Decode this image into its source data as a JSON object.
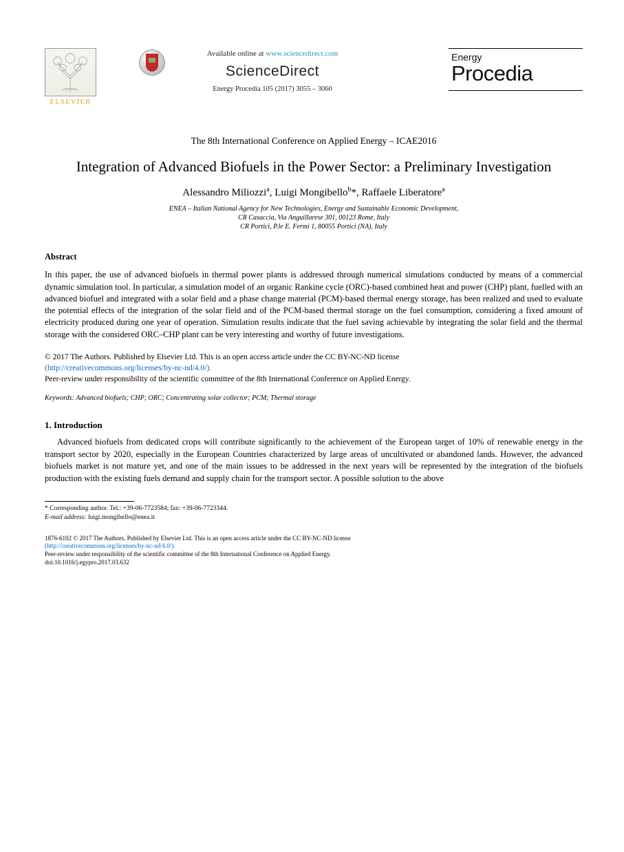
{
  "header": {
    "elsevier_label": "ELSEVIER",
    "available_at": "Available online at",
    "url": "www.sciencedirect.com",
    "sciencedirect": "ScienceDirect",
    "journal_line": "Energy Procedia 105 (2017) 3055 – 3060",
    "journal_energy": "Energy",
    "journal_procedia": "Procedia",
    "colors": {
      "url_color": "#1a9bb8",
      "elsevier_orange": "#e8a33d",
      "crossmark_red": "#c1272d"
    }
  },
  "conference": "The 8th International Conference on Applied Energy – ICAE2016",
  "title": "Integration of Advanced Biofuels in the Power Sector: a Preliminary Investigation",
  "authors_html": "Alessandro Miliozzi<sup>a</sup>, Luigi Mongibello<sup>b</sup>*, Raffaele Liberatore<sup>a</sup>",
  "affiliation": "ENEA – Italian National Agency for New Technologies, Energy and Sustainable Economic Development,<br>CR Casaccia, Via Anguillarese 301, 00123 Rome, Italy<br>CR Portici, P.le E. Fermi 1, 80055 Portici (NA), Italy",
  "abstract": {
    "heading": "Abstract",
    "body": "In this paper, the use of advanced biofuels in thermal power plants is addressed through numerical simulations conducted by means of a commercial dynamic simulation tool. In particular, a simulation model of an organic Rankine cycle (ORC)-based combined heat and power (CHP) plant, fuelled with an advanced biofuel and integrated with a solar field and a phase change material (PCM)-based thermal energy storage, has been realized and used to evaluate the potential effects of the integration of the solar field and of the PCM-based thermal storage on the fuel consumption, considering a fixed amount of electricity produced during one year of operation. Simulation results indicate that the fuel saving achievable by integrating the solar field and the thermal storage with the considered ORC–CHP plant can be very interesting and worthy of future investigations."
  },
  "copyright": {
    "line1": "© 2017 The Authors. Published by Elsevier Ltd. This is an open access article under the CC BY-NC-ND license",
    "license_url_text": "(http://creativecommons.org/licenses/by-nc-nd/4.0/).",
    "line2": "Peer-review under responsibility of the scientific committee of the 8th International Conference on Applied Energy."
  },
  "keywords": {
    "label": "Keywords:",
    "text": "Advanced biofuels; CHP; ORC; Concentrating solar collector; PCM; Thermal storage"
  },
  "intro": {
    "heading": "1. Introduction",
    "body": "Advanced biofuels from dedicated crops will contribute significantly to the achievement of the European target of 10% of renewable energy in the transport sector by 2020, especially in the European Countries characterized by large areas of uncultivated or abandoned lands. However, the advanced biofuels market is not mature yet, and one of the main issues to be addressed in the next years will be represented by the integration of the biofuels production with the existing fuels demand and supply chain for the transport sector. A possible solution to the above"
  },
  "footnote": {
    "corr": "* Corresponding author. Tel.: +39-06-7723584; fax: +39-06-7723344.",
    "email_lbl": "E-mail address:",
    "email": "luigi.mongibello@enea.it"
  },
  "bottom": {
    "issn_line": "1876-6102 © 2017 The Authors. Published by Elsevier Ltd. This is an open access article under the CC BY-NC-ND license",
    "license_url_text": "(http://creativecommons.org/licenses/by-nc-nd/4.0/).",
    "peer_line": "Peer-review under responsibility of the scientific committee of the 8th International Conference on Applied Energy.",
    "doi": "doi:10.1016/j.egypro.2017.03.632"
  }
}
